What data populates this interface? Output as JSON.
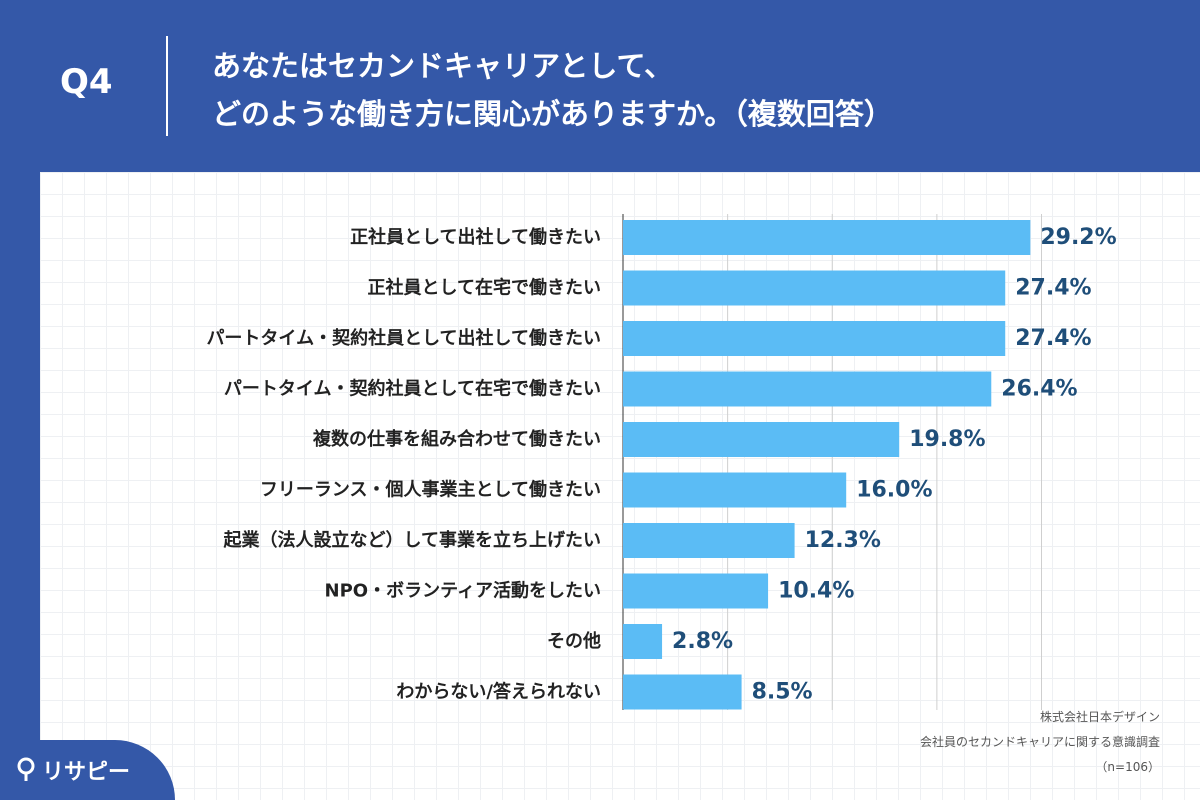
{
  "header": {
    "question_no": "Q4",
    "title_line1": "あなたはセカンドキャリアとして、",
    "title_line2": "どのような働き方に関心がありますか。（複数回答）"
  },
  "chart_data": {
    "type": "bar",
    "orientation": "horizontal",
    "title": "あなたはセカンドキャリアとして、どのような働き方に関心がありますか。（複数回答）",
    "categories": [
      "正社員として出社して働きたい",
      "正社員として在宅で働きたい",
      "パートタイム・契約社員として出社して働きたい",
      "パートタイム・契約社員として在宅で働きたい",
      "複数の仕事を組み合わせて働きたい",
      "フリーランス・個人事業主として働きたい",
      "起業（法人設立など）して事業を立ち上げたい",
      "NPO・ボランティア活動をしたい",
      "その他",
      "わからない/答えられない"
    ],
    "values": [
      29.2,
      27.4,
      27.4,
      26.4,
      19.8,
      16.0,
      12.3,
      10.4,
      2.8,
      8.5
    ],
    "value_labels": [
      "29.2%",
      "27.4%",
      "27.4%",
      "26.4%",
      "19.8%",
      "16.0%",
      "12.3%",
      "10.4%",
      "2.8%",
      "8.5%"
    ],
    "unit": "%",
    "xlim": [
      0,
      30
    ],
    "grid": true,
    "bar_color": "#5bbcf5"
  },
  "source": {
    "line1": "株式会社日本デザイン",
    "line2": "会社員のセカンドキャリアに関する意識調査",
    "line3": "（n=106）"
  },
  "logo": {
    "text": "リサピー",
    "icon": "pin-icon"
  }
}
